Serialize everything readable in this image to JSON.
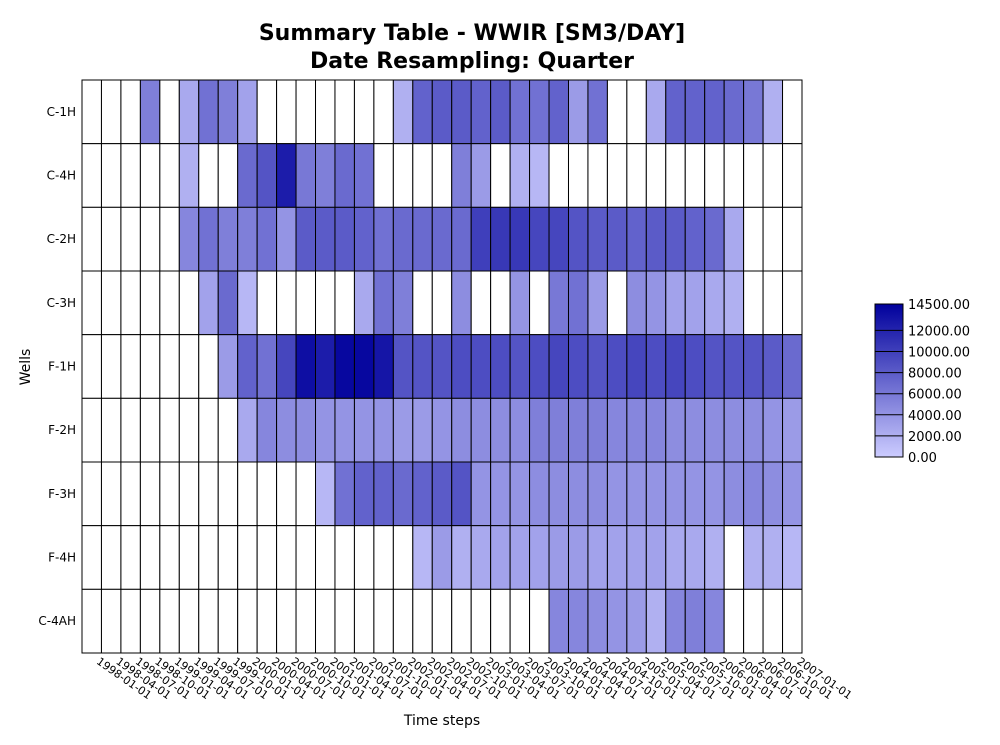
{
  "chart_data": {
    "type": "heatmap",
    "title": [
      "Summary Table - WWIR [SM3/DAY]",
      "Date Resampling: Quarter"
    ],
    "xlabel": "Time steps",
    "ylabel": "Wells",
    "wells": [
      "C-1H",
      "C-4H",
      "C-2H",
      "C-3H",
      "F-1H",
      "F-2H",
      "F-3H",
      "F-4H",
      "C-4AH"
    ],
    "time_steps": [
      "1998-01-01",
      "1998-04-01",
      "1998-07-01",
      "1998-10-01",
      "1999-01-01",
      "1999-04-01",
      "1999-07-01",
      "1999-10-01",
      "2000-01-01",
      "2000-04-01",
      "2000-07-01",
      "2000-10-01",
      "2001-01-01",
      "2001-04-01",
      "2001-07-01",
      "2001-10-01",
      "2002-01-01",
      "2002-04-01",
      "2002-07-01",
      "2002-10-01",
      "2003-01-01",
      "2003-04-01",
      "2003-07-01",
      "2003-10-01",
      "2004-01-01",
      "2004-04-01",
      "2004-07-01",
      "2004-10-01",
      "2005-01-01",
      "2005-04-01",
      "2005-07-01",
      "2005-10-01",
      "2006-01-01",
      "2006-04-01",
      "2006-07-01",
      "2006-10-01",
      "2007-01-01"
    ],
    "values": [
      [
        0,
        0,
        0,
        5500,
        0,
        2500,
        6500,
        5500,
        3000,
        0,
        0,
        0,
        0,
        0,
        0,
        0,
        2000,
        7500,
        8000,
        8000,
        7500,
        8000,
        6500,
        6500,
        7500,
        3500,
        6500,
        0,
        0,
        2500,
        7500,
        7500,
        7500,
        7000,
        6000,
        2000,
        0
      ],
      [
        0,
        0,
        0,
        0,
        0,
        2000,
        0,
        0,
        7000,
        8500,
        12500,
        6000,
        5500,
        7000,
        6500,
        0,
        0,
        0,
        0,
        5500,
        3500,
        0,
        2000,
        1500,
        0,
        0,
        0,
        0,
        0,
        0,
        0,
        0,
        0,
        0,
        0,
        0,
        0
      ],
      [
        0,
        0,
        0,
        0,
        0,
        5000,
        6500,
        5500,
        5500,
        6500,
        4000,
        8000,
        8000,
        8000,
        7500,
        6500,
        7000,
        7000,
        7000,
        7000,
        10000,
        10500,
        10500,
        9500,
        9500,
        8500,
        8000,
        8000,
        7500,
        8000,
        8000,
        7500,
        7000,
        2500,
        0,
        0,
        0
      ],
      [
        0,
        0,
        0,
        0,
        0,
        0,
        3000,
        7000,
        1500,
        0,
        0,
        0,
        0,
        0,
        2500,
        6500,
        5500,
        0,
        0,
        4500,
        0,
        0,
        4000,
        0,
        6000,
        6500,
        3500,
        0,
        4500,
        4000,
        3000,
        3000,
        2500,
        2000,
        0,
        0,
        0
      ],
      [
        0,
        0,
        0,
        0,
        0,
        0,
        0,
        3500,
        7500,
        6500,
        9500,
        13500,
        12500,
        14000,
        14000,
        13000,
        8500,
        8500,
        8500,
        9000,
        9000,
        9000,
        8500,
        9000,
        9500,
        9000,
        8500,
        9000,
        9500,
        9000,
        9500,
        9000,
        8500,
        8500,
        8500,
        8000,
        7000
      ],
      [
        0,
        0,
        0,
        0,
        0,
        0,
        0,
        0,
        2500,
        5000,
        4500,
        4500,
        4000,
        4000,
        4000,
        4000,
        3500,
        3500,
        4000,
        4500,
        4500,
        4500,
        4500,
        5500,
        5500,
        5500,
        5500,
        5000,
        5000,
        5000,
        4500,
        4500,
        4500,
        4500,
        4500,
        4000,
        3500
      ],
      [
        0,
        0,
        0,
        0,
        0,
        0,
        0,
        0,
        0,
        0,
        0,
        0,
        1500,
        6500,
        7500,
        7500,
        7000,
        7500,
        8000,
        8500,
        4000,
        4000,
        4000,
        4500,
        4500,
        4500,
        4500,
        4000,
        4000,
        4000,
        4000,
        4000,
        4000,
        4500,
        5000,
        4500,
        4000
      ],
      [
        0,
        0,
        0,
        0,
        0,
        0,
        0,
        0,
        0,
        0,
        0,
        0,
        0,
        0,
        0,
        0,
        0,
        1500,
        3500,
        2000,
        2500,
        3000,
        3000,
        3000,
        3500,
        3500,
        3000,
        3000,
        3000,
        3000,
        2500,
        2500,
        2000,
        0,
        2000,
        2000,
        1500
      ],
      [
        0,
        0,
        0,
        0,
        0,
        0,
        0,
        0,
        0,
        0,
        0,
        0,
        0,
        0,
        0,
        0,
        0,
        0,
        0,
        0,
        0,
        0,
        0,
        0,
        5000,
        5000,
        4500,
        4000,
        3500,
        2000,
        5000,
        5500,
        5000,
        0,
        0,
        0,
        0
      ]
    ],
    "colorbar": {
      "min": 0,
      "max": 14500,
      "ticks": [
        "14500.00",
        "12000.00",
        "10000.00",
        "8000.00",
        "6000.00",
        "4000.00",
        "2000.00",
        "0.00"
      ],
      "tick_values": [
        14500,
        12000,
        10000,
        8000,
        6000,
        4000,
        2000,
        0
      ],
      "color_low": "#ccccff",
      "color_high": "#00009c",
      "zero_color": "#ffffff"
    },
    "grid": true,
    "legend_placement": "right"
  }
}
